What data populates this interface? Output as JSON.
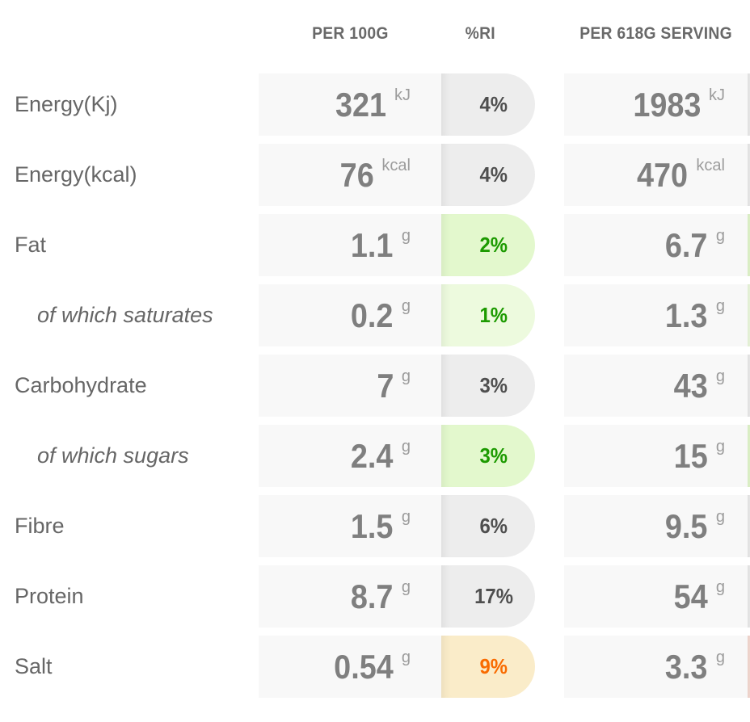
{
  "chart_data": {
    "type": "table",
    "columns": [
      "PER 100G",
      "%RI",
      "PER 618G SERVING"
    ],
    "rows": [
      {
        "label": "Energy(Kj)",
        "indent": false,
        "per100_value": "321",
        "per100_unit": "kJ",
        "ri": "4%",
        "ri_variant": "gray",
        "serving_value": "1983",
        "serving_unit": "kJ",
        "serving_ri_variant": "gray"
      },
      {
        "label": "Energy(kcal)",
        "indent": false,
        "per100_value": "76",
        "per100_unit": "kcal",
        "ri": "4%",
        "ri_variant": "gray",
        "serving_value": "470",
        "serving_unit": "kcal",
        "serving_ri_variant": "gray"
      },
      {
        "label": "Fat",
        "indent": false,
        "per100_value": "1.1",
        "per100_unit": "g",
        "ri": "2%",
        "ri_variant": "green",
        "serving_value": "6.7",
        "serving_unit": "g",
        "serving_ri_variant": "green"
      },
      {
        "label": "of which saturates",
        "indent": true,
        "per100_value": "0.2",
        "per100_unit": "g",
        "ri": "1%",
        "ri_variant": "green-light",
        "serving_value": "1.3",
        "serving_unit": "g",
        "serving_ri_variant": "green-light"
      },
      {
        "label": "Carbohydrate",
        "indent": false,
        "per100_value": "7",
        "per100_unit": "g",
        "ri": "3%",
        "ri_variant": "gray",
        "serving_value": "43",
        "serving_unit": "g",
        "serving_ri_variant": "gray"
      },
      {
        "label": "of which sugars",
        "indent": true,
        "per100_value": "2.4",
        "per100_unit": "g",
        "ri": "3%",
        "ri_variant": "green",
        "serving_value": "15",
        "serving_unit": "g",
        "serving_ri_variant": "green"
      },
      {
        "label": "Fibre",
        "indent": false,
        "per100_value": "1.5",
        "per100_unit": "g",
        "ri": "6%",
        "ri_variant": "gray",
        "serving_value": "9.5",
        "serving_unit": "g",
        "serving_ri_variant": "gray"
      },
      {
        "label": "Protein",
        "indent": false,
        "per100_value": "8.7",
        "per100_unit": "g",
        "ri": "17%",
        "ri_variant": "gray",
        "serving_value": "54",
        "serving_unit": "g",
        "serving_ri_variant": "gray"
      },
      {
        "label": "Salt",
        "indent": false,
        "per100_value": "0.54",
        "per100_unit": "g",
        "ri": "9%",
        "ri_variant": "orange",
        "serving_value": "3.3",
        "serving_unit": "g",
        "serving_ri_variant": "red-light"
      }
    ]
  },
  "colors": {
    "value_box_bg": "#f8f8f8",
    "number_text": "#7f7f7f",
    "unit_text": "#9c9c9c",
    "label_text": "#666666",
    "header_text": "#696969",
    "ri_variants": {
      "gray": {
        "bg": "#ededed",
        "text": "#4f4f4f"
      },
      "green": {
        "bg": "#e3f8cd",
        "text": "#1c9a00"
      },
      "green-light": {
        "bg": "#edfade",
        "text": "#1c9a00"
      },
      "orange": {
        "bg": "#faecc9",
        "text": "#f96b00"
      },
      "red-light": {
        "bg": "#f8dcd4",
        "text": "#e23d00"
      }
    }
  }
}
